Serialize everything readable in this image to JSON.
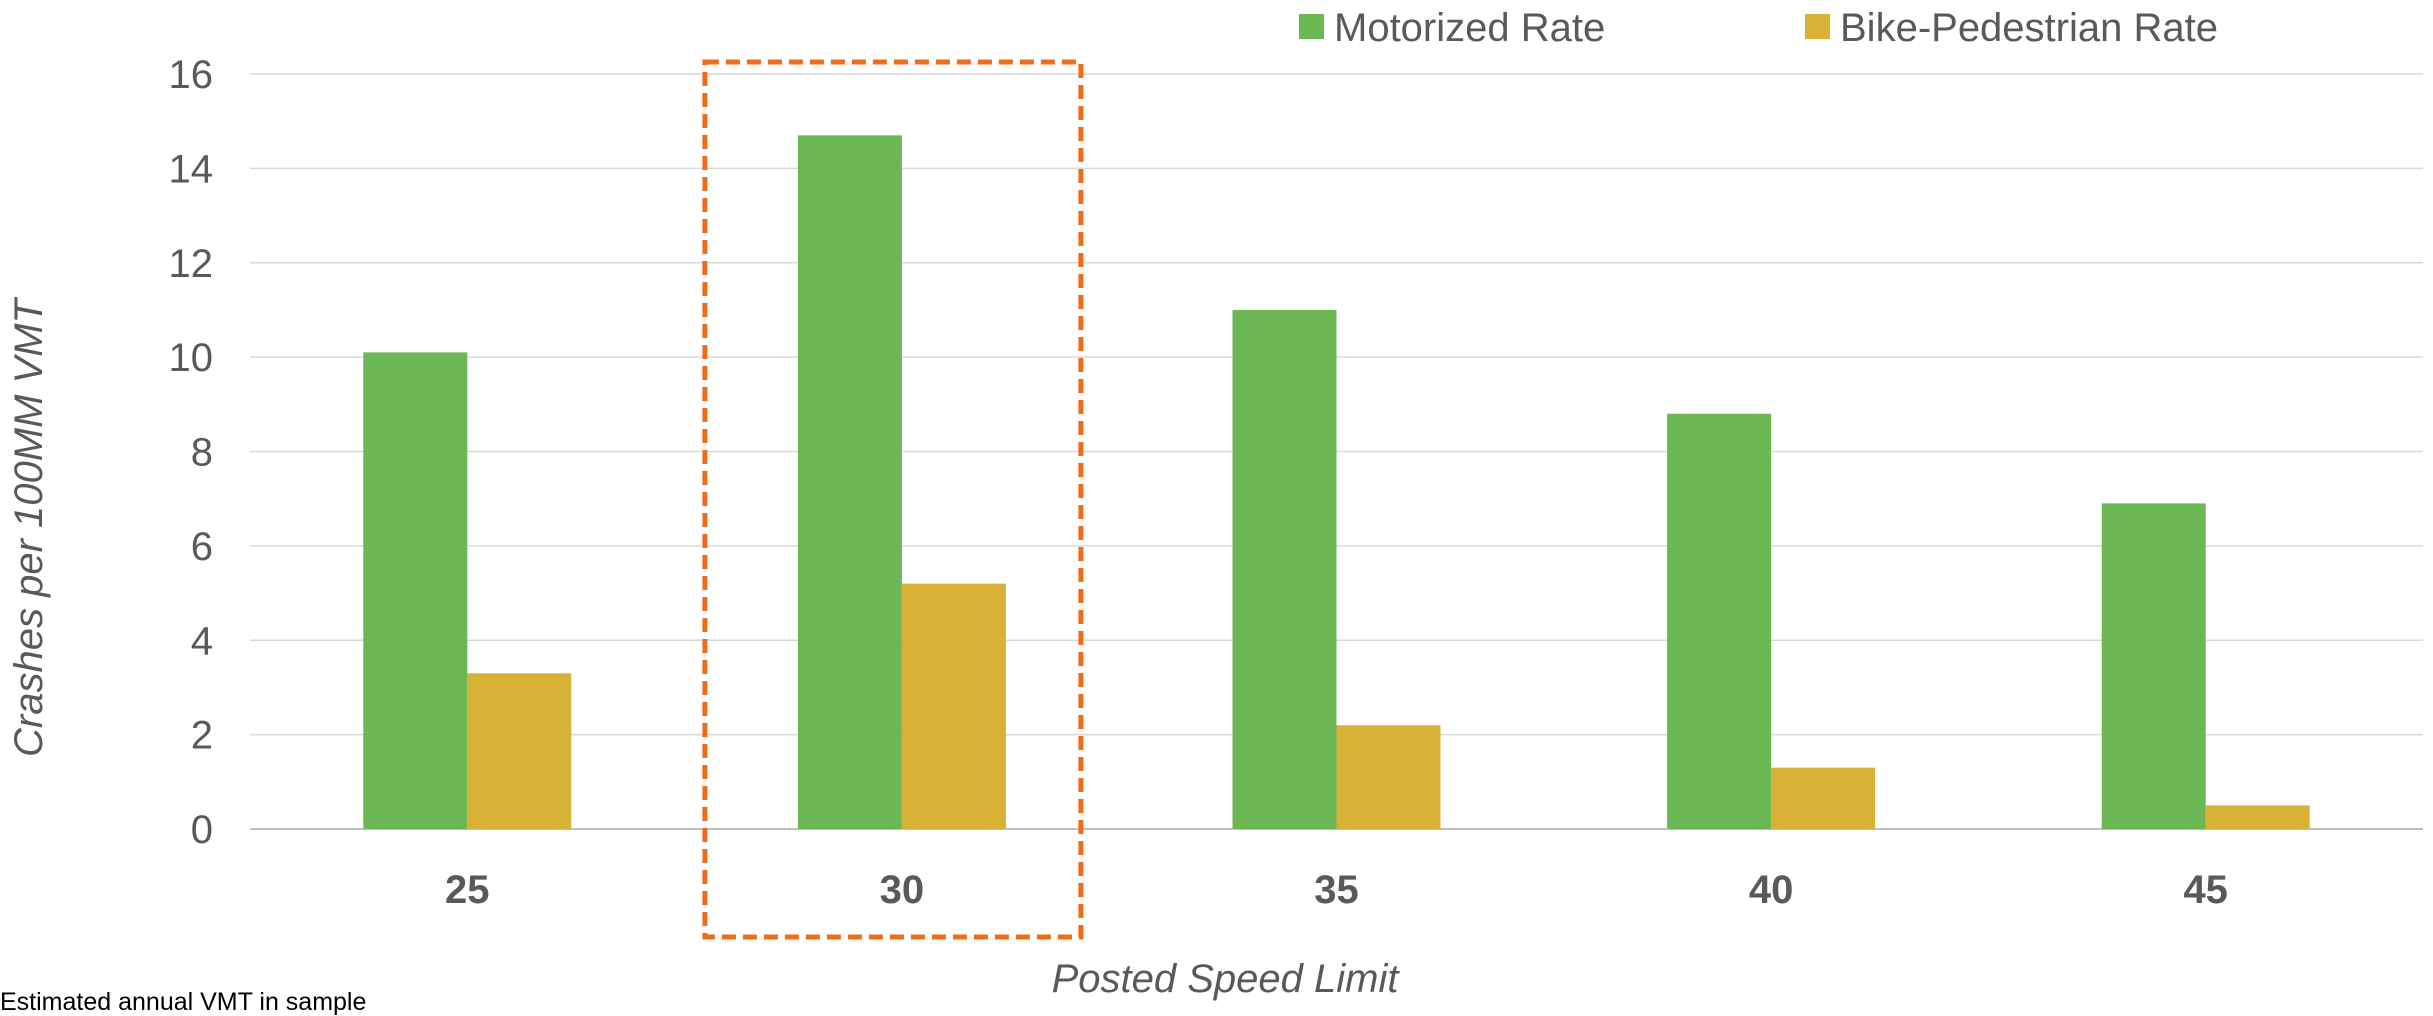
{
  "chart_data": {
    "type": "bar",
    "categories": [
      "25",
      "30",
      "35",
      "40",
      "45"
    ],
    "series": [
      {
        "name": "Motorized Rate",
        "color": "#6ab753",
        "values": [
          10.1,
          14.7,
          11.0,
          8.8,
          6.9
        ]
      },
      {
        "name": "Bike-Pedestrian Rate",
        "color": "#d8b236",
        "values": [
          3.3,
          5.2,
          2.2,
          1.3,
          0.5
        ]
      }
    ],
    "title": "",
    "xlabel": "Posted Speed Limit",
    "ylabel": "Crashes  per 100MM VMT",
    "ylim": [
      0,
      16
    ],
    "yticks": [
      0,
      2,
      4,
      6,
      8,
      10,
      12,
      14,
      16
    ],
    "grid": true,
    "legend": "top-right",
    "highlight": {
      "category": "30",
      "style": "dashed box",
      "color": "#ef6c1a"
    }
  },
  "footnote": "Estimated annual VMT in sample"
}
